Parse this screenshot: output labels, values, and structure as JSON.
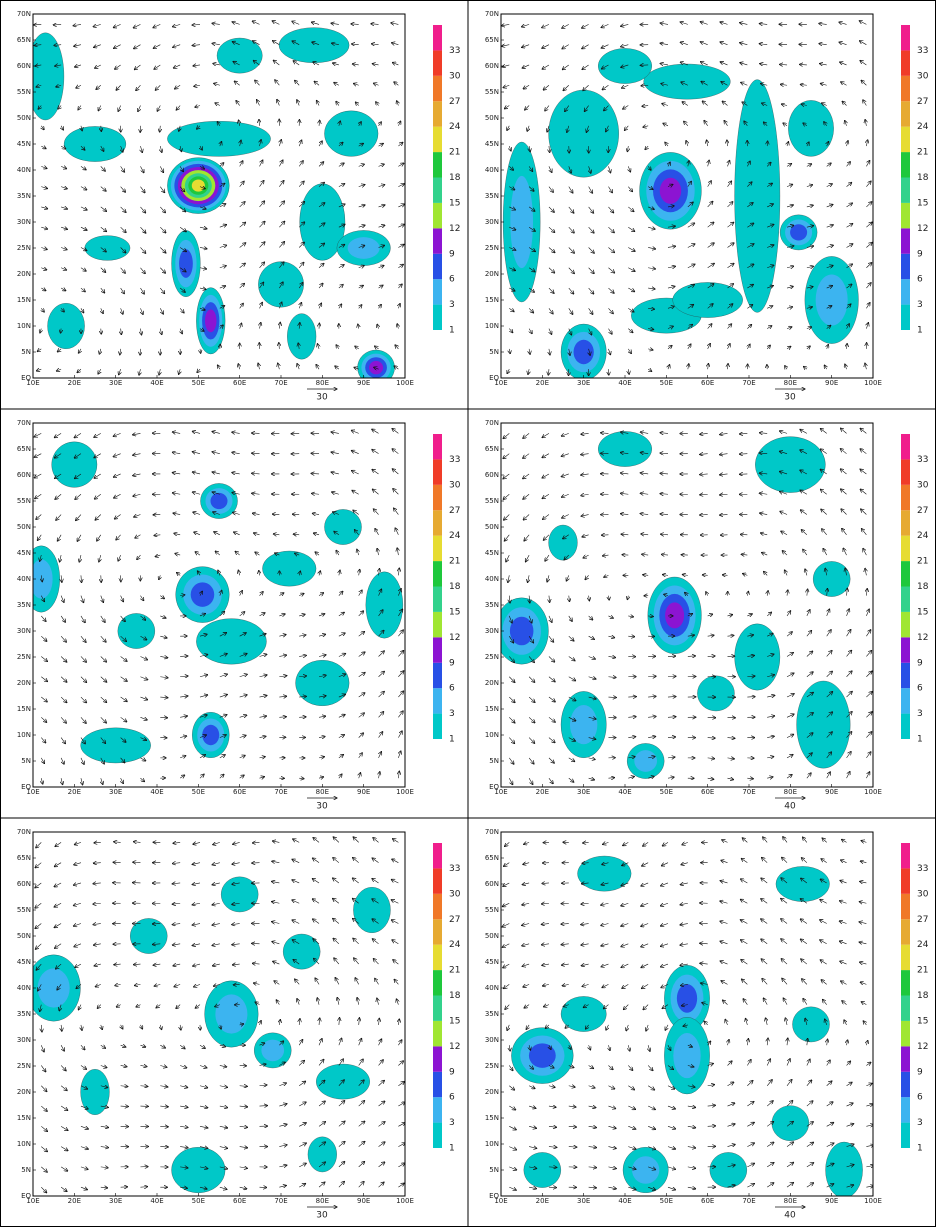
{
  "lat_labels": [
    "70N",
    "65N",
    "60N",
    "55N",
    "50N",
    "45N",
    "40N",
    "35N",
    "30N",
    "25N",
    "20N",
    "15N",
    "10N",
    "5N",
    "EQ"
  ],
  "lon_labels": [
    "10E",
    "20E",
    "30E",
    "40E",
    "50E",
    "60E",
    "70E",
    "80E",
    "90E",
    "100E"
  ],
  "colorbar": {
    "labels": [
      33,
      30,
      27,
      24,
      21,
      18,
      15,
      12,
      9,
      6,
      3,
      1
    ],
    "colors": [
      "#00c8c8",
      "#3cb4f0",
      "#2850e6",
      "#8c14d2",
      "#a0e632",
      "#32d28c",
      "#1ec83c",
      "#e6dc32",
      "#e6aa32",
      "#f07828",
      "#f03c28",
      "#f01e8c"
    ]
  },
  "panels": [
    {
      "ref_vector": 30
    },
    {
      "ref_vector": 30
    },
    {
      "ref_vector": 30
    },
    {
      "ref_vector": 40
    },
    {
      "ref_vector": 30
    },
    {
      "ref_vector": 40
    }
  ]
}
